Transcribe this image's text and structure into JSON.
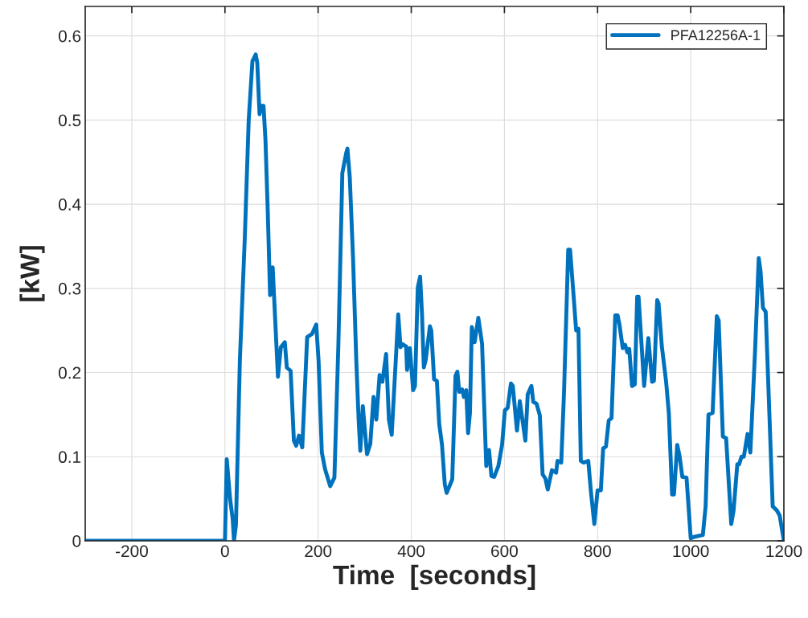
{
  "chart_data": {
    "type": "line",
    "xlabel": "Time  [seconds]",
    "ylabel": "[kW]",
    "xlim": [
      -300,
      1200
    ],
    "xticks": [
      -200,
      0,
      200,
      400,
      600,
      800,
      1000,
      1200
    ],
    "ylim": [
      0,
      0.635
    ],
    "yticks": [
      0,
      0.1,
      0.2,
      0.3,
      0.4,
      0.5,
      0.6
    ],
    "grid": true,
    "legend": "top right",
    "line_style": "solid",
    "marker": "none",
    "series": [
      {
        "name": "PFA12256A-1",
        "color": "#0072bd",
        "x": [
          -300,
          0,
          3.9,
          11,
          16.6,
          19.4,
          23.6,
          32,
          42.6,
          51,
          59,
          66,
          69.4,
          74.3,
          77.8,
          82.8,
          87,
          92,
          96.9,
          102.5,
          108,
          113.8,
          120,
          128.6,
          132.8,
          141,
          148,
          153,
          158.9,
          166,
          176.5,
          187,
          196,
          201,
          208,
          215,
          226,
          235,
          243.5,
          252,
          260,
          263,
          268,
          275,
          282,
          287,
          290.6,
          296,
          305,
          312,
          319,
          325,
          332,
          338,
          346,
          352,
          358,
          366.7,
          372,
          377,
          380,
          389,
          391,
          397,
          404,
          408,
          414,
          419,
          423,
          427,
          431,
          440,
          443,
          449,
          455,
          460,
          466,
          472,
          476,
          488,
          495,
          499,
          503,
          509,
          513,
          518,
          522,
          526,
          530,
          536,
          544,
          552,
          561,
          567,
          572,
          578,
          587,
          595,
          601,
          607,
          614,
          618,
          627,
          633,
          645,
          650,
          658,
          662,
          669,
          676,
          682,
          688,
          693,
          702,
          711,
          714,
          722,
          728,
          737,
          741,
          748,
          754,
          759,
          764,
          770,
          780,
          786,
          793,
          800,
          807,
          812,
          818,
          824,
          830,
          838,
          843,
          847,
          854,
          859,
          864,
          868,
          874,
          880,
          885,
          888,
          900,
          909,
          917,
          921,
          928,
          931,
          938,
          947,
          953,
          960,
          964,
          971,
          976,
          982,
          991,
          1000,
          1009,
          1026,
          1032,
          1038,
          1047,
          1056,
          1060,
          1069,
          1076,
          1087,
          1092,
          1100,
          1104,
          1109,
          1114,
          1122,
          1128,
          1138,
          1146,
          1150,
          1155,
          1161,
          1176,
          1185,
          1191,
          1200
        ],
        "values": [
          0,
          0,
          0.097,
          0.05,
          0.026,
          0,
          0.019,
          0.214,
          0.36,
          0.5,
          0.57,
          0.578,
          0.568,
          0.507,
          0.517,
          0.517,
          0.476,
          0.39,
          0.292,
          0.325,
          0.261,
          0.195,
          0.23,
          0.236,
          0.206,
          0.202,
          0.119,
          0.113,
          0.125,
          0.111,
          0.242,
          0.246,
          0.257,
          0.214,
          0.105,
          0.085,
          0.065,
          0.075,
          0.233,
          0.437,
          0.46,
          0.466,
          0.432,
          0.336,
          0.214,
          0.144,
          0.107,
          0.16,
          0.103,
          0.115,
          0.171,
          0.144,
          0.197,
          0.189,
          0.222,
          0.144,
          0.126,
          0.214,
          0.269,
          0.23,
          0.234,
          0.231,
          0.203,
          0.229,
          0.179,
          0.184,
          0.301,
          0.314,
          0.27,
          0.206,
          0.215,
          0.255,
          0.25,
          0.192,
          0.19,
          0.139,
          0.114,
          0.067,
          0.057,
          0.073,
          0.196,
          0.201,
          0.177,
          0.18,
          0.171,
          0.179,
          0.128,
          0.152,
          0.254,
          0.236,
          0.265,
          0.234,
          0.089,
          0.108,
          0.077,
          0.076,
          0.089,
          0.114,
          0.155,
          0.158,
          0.187,
          0.184,
          0.131,
          0.166,
          0.119,
          0.174,
          0.184,
          0.165,
          0.163,
          0.149,
          0.079,
          0.074,
          0.061,
          0.084,
          0.081,
          0.095,
          0.093,
          0.177,
          0.346,
          0.346,
          0.295,
          0.25,
          0.252,
          0.095,
          0.093,
          0.095,
          0.057,
          0.02,
          0.06,
          0.06,
          0.11,
          0.112,
          0.143,
          0.146,
          0.268,
          0.268,
          0.257,
          0.229,
          0.233,
          0.224,
          0.228,
          0.184,
          0.186,
          0.29,
          0.29,
          0.184,
          0.241,
          0.189,
          0.19,
          0.286,
          0.282,
          0.231,
          0.19,
          0.152,
          0.055,
          0.055,
          0.114,
          0.101,
          0.076,
          0.075,
          0.003,
          0.005,
          0.007,
          0.041,
          0.15,
          0.152,
          0.267,
          0.262,
          0.124,
          0.122,
          0.02,
          0.036,
          0.091,
          0.091,
          0.1,
          0.1,
          0.127,
          0.105,
          0.224,
          0.336,
          0.32,
          0.277,
          0.272,
          0.041,
          0.036,
          0.03,
          0
        ]
      }
    ]
  }
}
